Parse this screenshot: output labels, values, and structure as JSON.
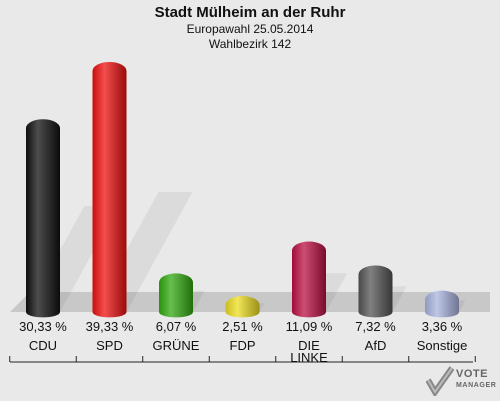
{
  "header": {
    "title": "Stadt Mülheim an der Ruhr",
    "subtitle1": "Europawahl 25.05.2014",
    "subtitle2": "Wahlbezirk 142"
  },
  "logo": {
    "line1": "VOTE",
    "line2": "MANAGER"
  },
  "chart_data": {
    "type": "bar",
    "title": "Stadt Mülheim an der Ruhr",
    "subtitle": [
      "Europawahl 25.05.2014",
      "Wahlbezirk 142"
    ],
    "categories": [
      "CDU",
      "SPD",
      "GRÜNE",
      "FDP",
      "DIE LINKE",
      "AfD",
      "Sonstige"
    ],
    "values": [
      30.33,
      39.33,
      6.07,
      2.51,
      11.09,
      7.32,
      3.36
    ],
    "value_labels": [
      "30,33 %",
      "39,33 %",
      "6,07 %",
      "2,51 %",
      "11,09 %",
      "7,32 %",
      "3,36 %"
    ],
    "colors": [
      "#111111",
      "#ee1111",
      "#33aa11",
      "#eedd22",
      "#bb1144",
      "#555555",
      "#aab4e0"
    ],
    "ylim": [
      0,
      39.33
    ],
    "grid": false,
    "legend": "none"
  }
}
